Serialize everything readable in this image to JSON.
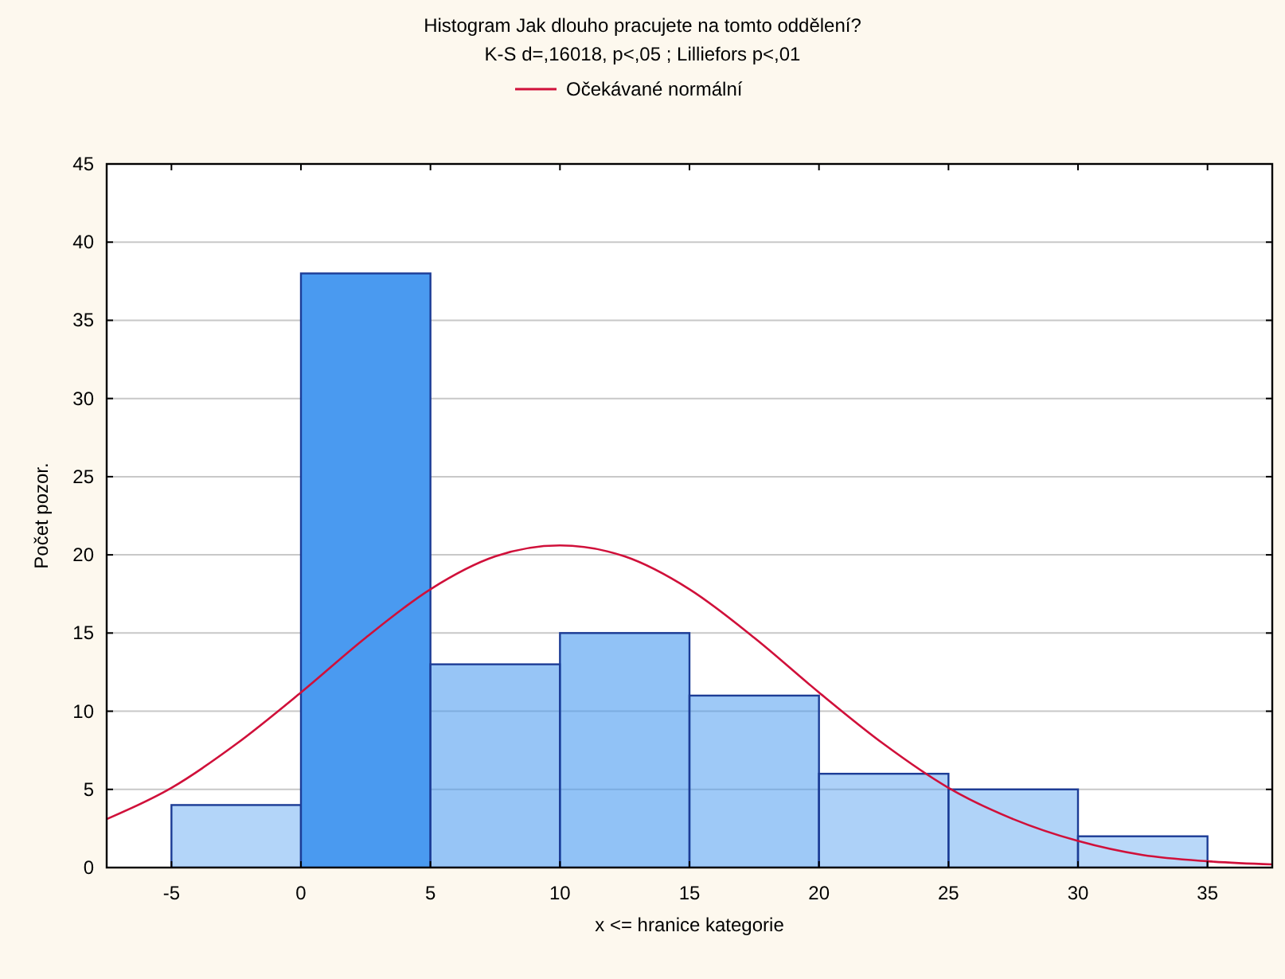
{
  "chart_data": {
    "type": "histogram",
    "title": "Histogram Jak dlouho pracujete na tomto oddělení?",
    "subtitle": "K-S d=,16018, p<,05 ; Lilliefors p<,01",
    "xlabel": "x <= hranice kategorie",
    "ylabel": "Počet pozor.",
    "bins": [
      -5,
      0,
      5,
      10,
      15,
      20,
      25,
      30,
      35
    ],
    "series": [
      {
        "color": "#4a9af0",
        "values": [
          4,
          38,
          13,
          15,
          11,
          6,
          5,
          2
        ]
      },
      {
        "type": "line",
        "name": "Očekávané normální",
        "color": "#d0103a",
        "x": [
          -7.5,
          -5,
          -2.5,
          0,
          2.5,
          5,
          7.5,
          10,
          12.5,
          15,
          17.5,
          20,
          22.5,
          25,
          27.5,
          30,
          32.5,
          35,
          37.5
        ],
        "values": [
          3.1,
          5.1,
          7.9,
          11.2,
          14.7,
          17.8,
          19.9,
          20.6,
          19.9,
          17.8,
          14.7,
          11.2,
          7.9,
          5.1,
          3.1,
          1.7,
          0.8,
          0.4,
          0.2
        ]
      }
    ],
    "xlim": [
      -7.5,
      37.5
    ],
    "xticks": [
      -5,
      0,
      5,
      10,
      15,
      20,
      25,
      30,
      35
    ],
    "ylim": [
      0,
      45
    ],
    "yticks": [
      0,
      5,
      10,
      15,
      20,
      25,
      30,
      35,
      40,
      45
    ],
    "grid": "y",
    "legend": "top"
  }
}
